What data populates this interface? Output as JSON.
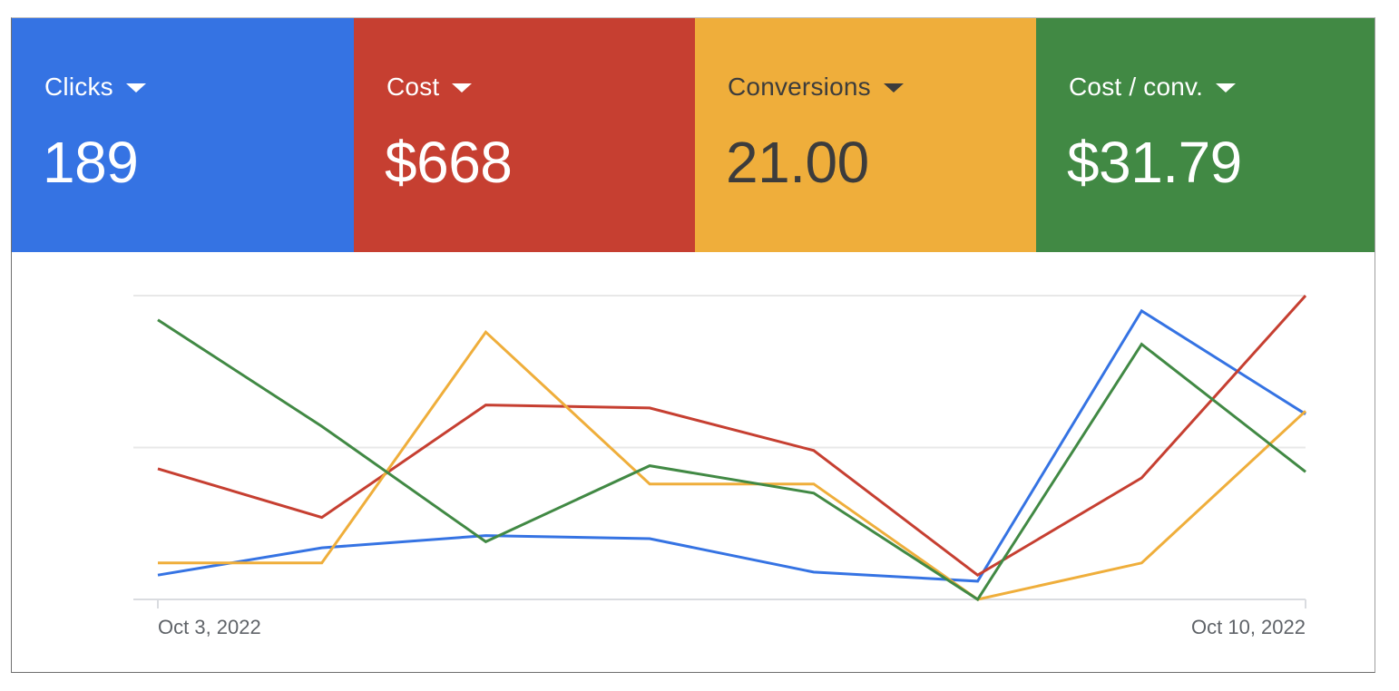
{
  "metrics": [
    {
      "label": "Clicks",
      "value": "189",
      "color": "#3573e3",
      "text_color": "#ffffff"
    },
    {
      "label": "Cost",
      "value": "$668",
      "color": "#c63f31",
      "text_color": "#ffffff"
    },
    {
      "label": "Conversions",
      "value": "21.00",
      "color": "#efae3b",
      "text_color": "#3c3c3c"
    },
    {
      "label": "Cost / conv.",
      "value": "$31.79",
      "color": "#418944",
      "text_color": "#ffffff"
    }
  ],
  "chart_data": {
    "type": "line",
    "x": [
      "Oct 3, 2022",
      "Oct 4, 2022",
      "Oct 5, 2022",
      "Oct 6, 2022",
      "Oct 7, 2022",
      "Oct 8, 2022",
      "Oct 9, 2022",
      "Oct 10, 2022"
    ],
    "x_tick_labels": [
      "Oct 3, 2022",
      "Oct 10, 2022"
    ],
    "y_scale": "relative (no y-axis labels shown; values normalized 0–1)",
    "ylim": [
      0,
      1
    ],
    "gridlines": [
      0,
      0.5,
      1
    ],
    "series": [
      {
        "metric": "Clicks",
        "color": "#3573e3",
        "values": [
          0.08,
          0.17,
          0.21,
          0.2,
          0.09,
          0.06,
          0.95,
          0.61
        ]
      },
      {
        "metric": "Cost",
        "color": "#c63f31",
        "values": [
          0.43,
          0.27,
          0.64,
          0.63,
          0.49,
          0.08,
          0.4,
          1.0
        ]
      },
      {
        "metric": "Conversions",
        "color": "#efae3b",
        "values": [
          0.12,
          0.12,
          0.88,
          0.38,
          0.38,
          0.0,
          0.12,
          0.62
        ]
      },
      {
        "metric": "Cost / conv.",
        "color": "#418944",
        "values": [
          0.92,
          0.57,
          0.19,
          0.44,
          0.35,
          0.0,
          0.84,
          0.42
        ]
      }
    ],
    "legend": "none (metric tiles act as legend)"
  }
}
